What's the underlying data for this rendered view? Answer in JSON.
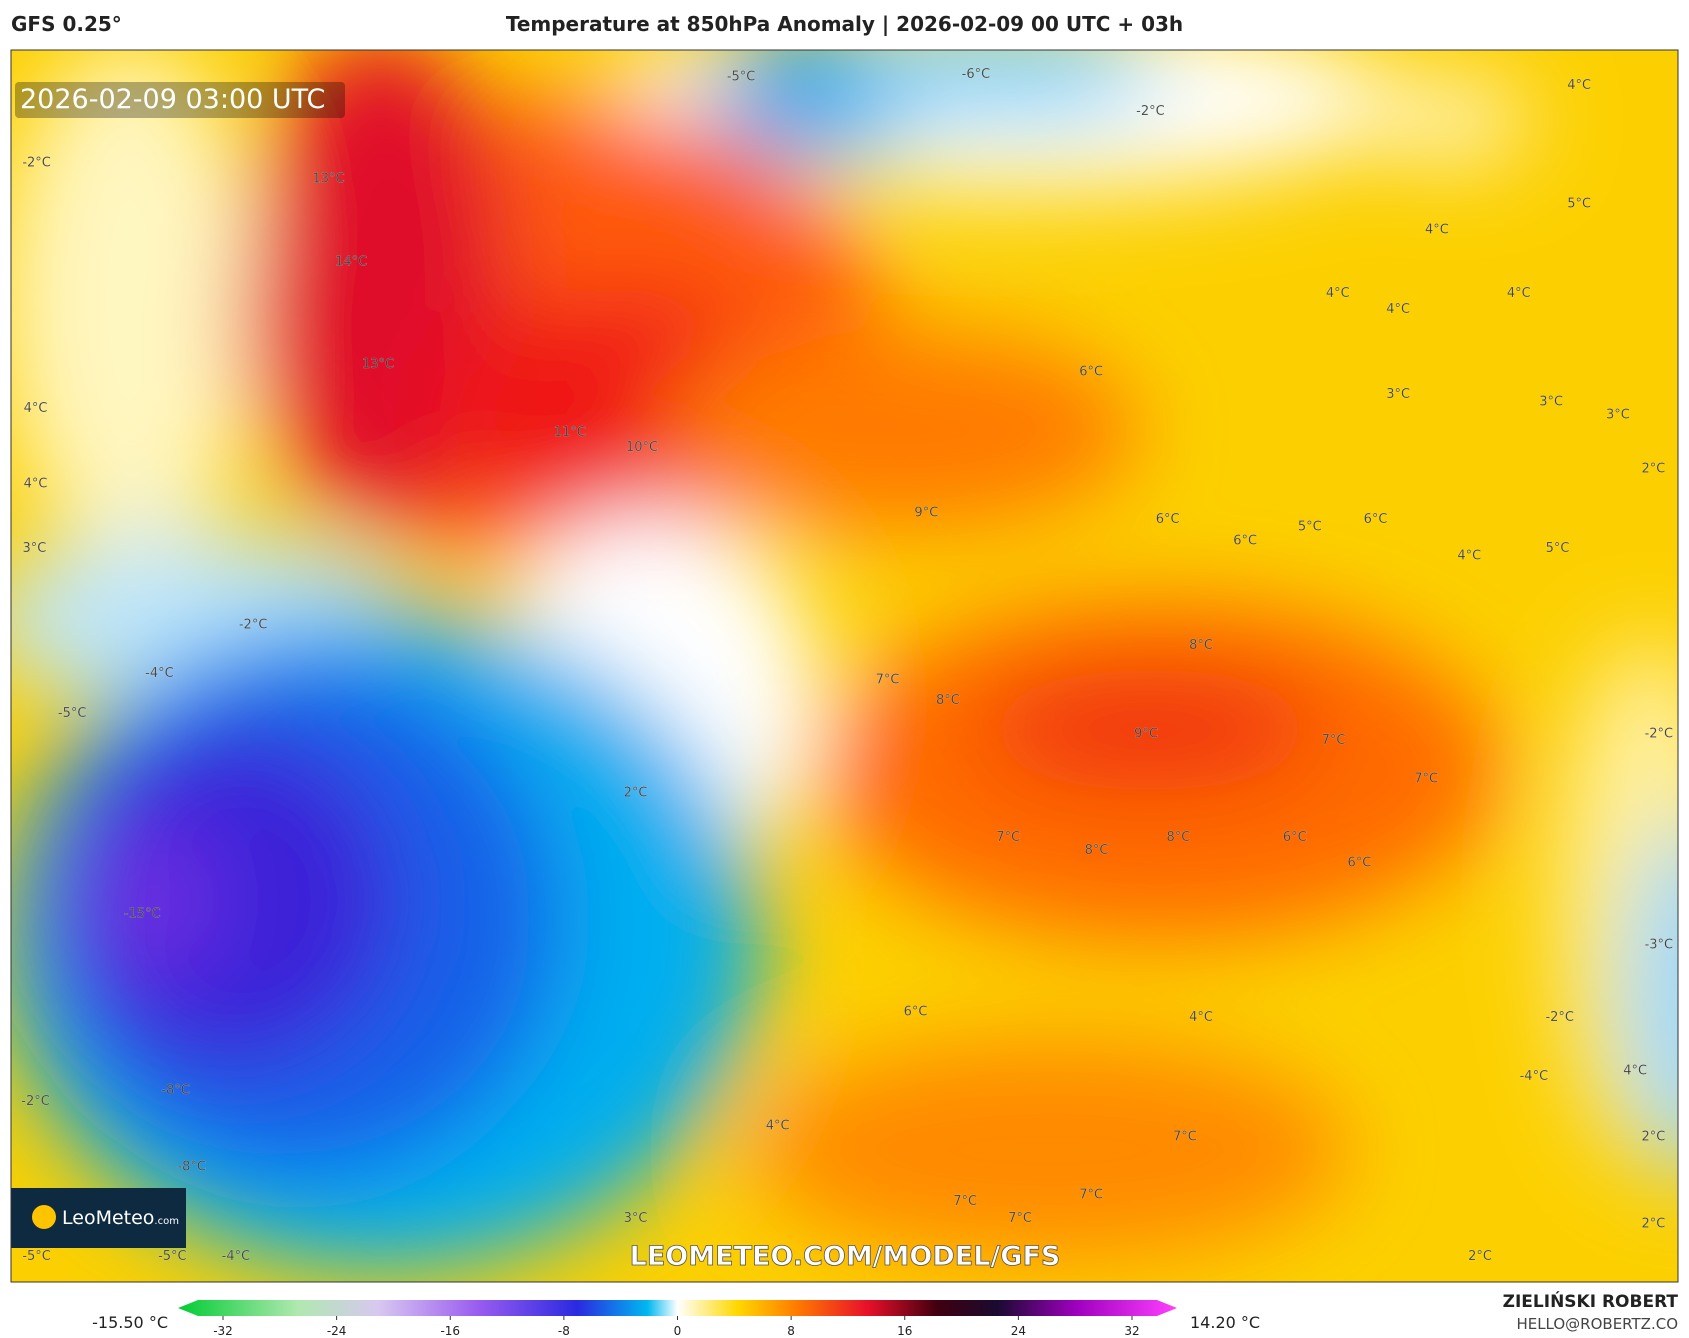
{
  "header": {
    "model": "GFS 0.25°",
    "title": "Temperature at 850hPa Anomaly | 2026-02-09 00 UTC + 03h"
  },
  "map": {
    "timestamp": "2026-02-09 03:00 UTC",
    "watermark": "LEOMETEO.COM/MODEL/GFS",
    "logo": {
      "name": "LeoMeteo",
      "suffix": ".com"
    },
    "labels": [
      "-5°C",
      "-6°C",
      "-2°C",
      "4°C",
      "-2°C",
      "13°C",
      "5°C",
      "4°C",
      "14°C",
      "4°C",
      "4°C",
      "4°C",
      "6°C",
      "13°C",
      "3°C",
      "4°C",
      "3°C",
      "3°C",
      "11°C",
      "10°C",
      "2°C",
      "4°C",
      "9°C",
      "6°C",
      "6°C",
      "5°C",
      "6°C",
      "3°C",
      "4°C",
      "5°C",
      "-2°C",
      "8°C",
      "-4°C",
      "7°C",
      "8°C",
      "-5°C",
      "-2°C",
      "9°C",
      "7°C",
      "7°C",
      "2°C",
      "7°C",
      "8°C",
      "8°C",
      "6°C",
      "6°C",
      "-15°C",
      "-3°C",
      "6°C",
      "4°C",
      "-2°C",
      "4°C",
      "-4°C",
      "-2°C",
      "-8°C",
      "4°C",
      "2°C",
      "7°C",
      "-8°C",
      "7°C",
      "7°C",
      "3°C",
      "7°C",
      "2°C",
      "-5°C",
      "-5°C",
      "-4°C",
      "2°C"
    ]
  },
  "colorbar": {
    "min_label": "-15.50 °C",
    "max_label": "14.20 °C",
    "ticks": [
      -32,
      -24,
      -16,
      -8,
      0,
      8,
      16,
      24,
      32
    ]
  },
  "footer": {
    "author": "ZIELIŃSKI ROBERT",
    "email": "HELLO@ROBERTZ.CO"
  }
}
